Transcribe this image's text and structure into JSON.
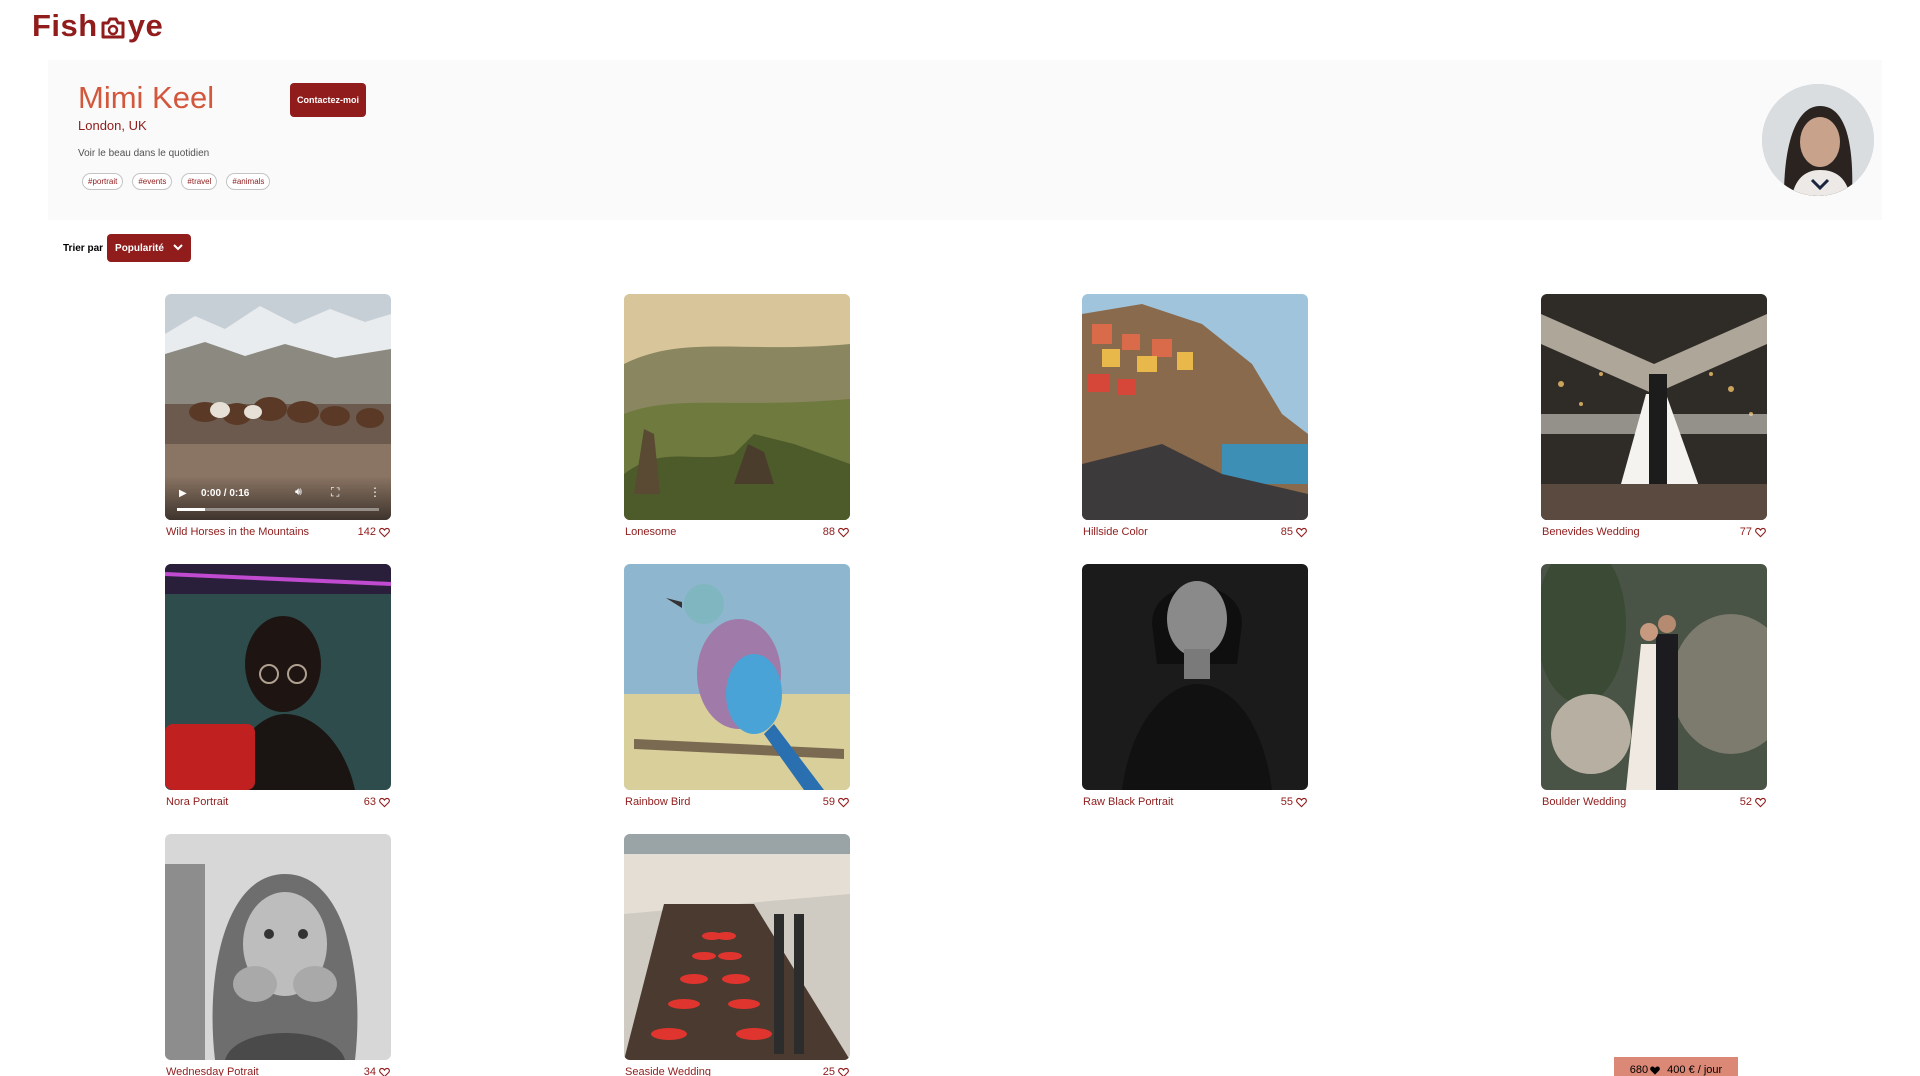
{
  "brand": {
    "logo_left": "Fish",
    "logo_right": "ye"
  },
  "profile": {
    "name": "Mimi Keel",
    "location": "London, UK",
    "tagline": "Voir le beau dans le quotidien",
    "tags": [
      "#portrait",
      "#events",
      "#travel",
      "#animals"
    ],
    "contact_label": "Contactez-moi"
  },
  "sort": {
    "label": "Trier par",
    "selected": "Popularité"
  },
  "media": [
    {
      "title": "Wild Horses in the Mountains",
      "likes": "142",
      "type": "video",
      "time": "0:00 / 0:16"
    },
    {
      "title": "Lonesome",
      "likes": "88",
      "type": "image"
    },
    {
      "title": "Hillside Color",
      "likes": "85",
      "type": "image"
    },
    {
      "title": "Benevides Wedding",
      "likes": "77",
      "type": "image"
    },
    {
      "title": "Nora Portrait",
      "likes": "63",
      "type": "image"
    },
    {
      "title": "Rainbow Bird",
      "likes": "59",
      "type": "image"
    },
    {
      "title": "Raw Black Portrait",
      "likes": "55",
      "type": "image"
    },
    {
      "title": "Boulder Wedding",
      "likes": "52",
      "type": "image"
    },
    {
      "title": "Wednesday Potrait",
      "likes": "34",
      "type": "image"
    },
    {
      "title": "Seaside Wedding",
      "likes": "25",
      "type": "image"
    }
  ],
  "footer": {
    "total_likes": "680",
    "rate": "400 € / jour"
  },
  "colors": {
    "primary": "#901C1C",
    "accent": "#D3573C",
    "banner": "#FAFAFA",
    "price_box": "#DB8876"
  }
}
